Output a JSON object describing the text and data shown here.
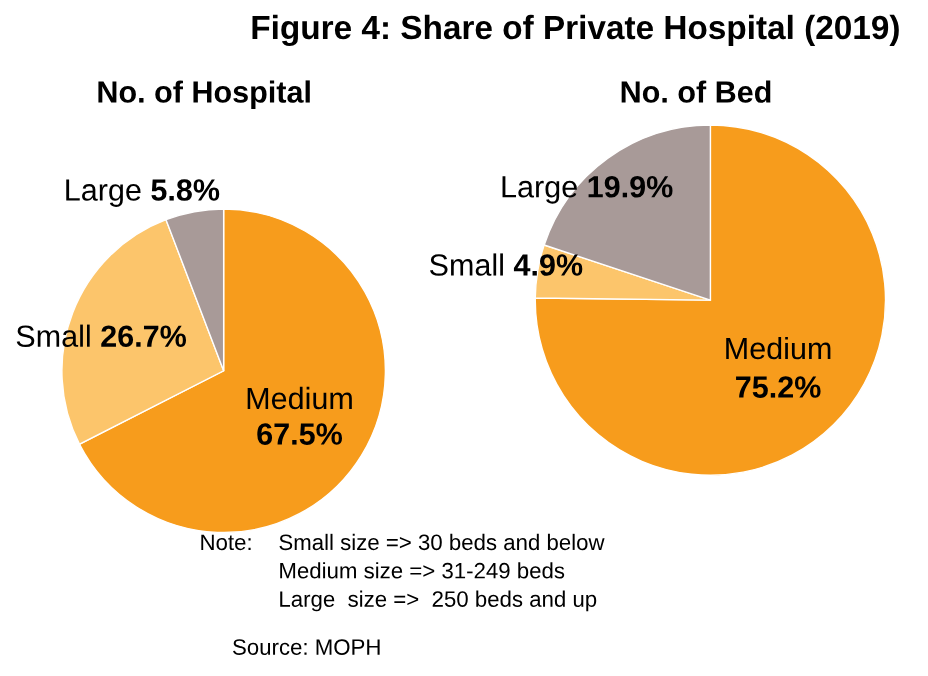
{
  "chart_data": [
    {
      "type": "pie",
      "title": "Figure 4: Share of Private Hospital (2019)",
      "subtitle": "No. of Hospital",
      "categories": [
        "Medium",
        "Small",
        "Large"
      ],
      "values": [
        67.5,
        26.7,
        5.8
      ],
      "value_labels": [
        "67.5%",
        "26.7%",
        "5.8%"
      ],
      "colors": [
        "#f79c1c",
        "#fcc56b",
        "#a89a98"
      ],
      "annotations": [
        "Note:",
        "Small size => 30 beds and below",
        "Medium size => 31-249 beds",
        "Large  size =>  250 beds and up",
        "Source: MOPH"
      ]
    },
    {
      "type": "pie",
      "subtitle": "No. of Bed",
      "categories": [
        "Medium",
        "Small",
        "Large"
      ],
      "values": [
        75.2,
        4.9,
        19.9
      ],
      "value_labels": [
        "75.2%",
        "4.9%",
        "19.9%"
      ],
      "colors": [
        "#f79c1c",
        "#fcc56b",
        "#a89a98"
      ]
    }
  ]
}
